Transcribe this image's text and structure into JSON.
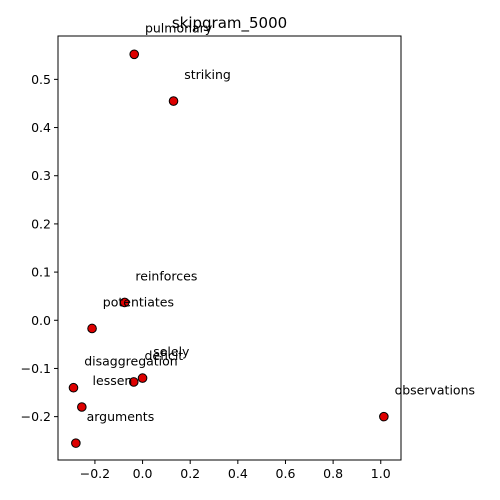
{
  "chart_data": {
    "type": "scatter",
    "title": "skipgram_5000",
    "xlabel": "",
    "ylabel": "",
    "xlim": [
      -0.355,
      1.085
    ],
    "ylim": [
      -0.29,
      0.59
    ],
    "xticks": [
      -0.2,
      0.0,
      0.2,
      0.4,
      0.6,
      0.8,
      1.0
    ],
    "xtick_labels": [
      "−0.2",
      "0.0",
      "0.2",
      "0.4",
      "0.6",
      "0.8",
      "1.0"
    ],
    "yticks": [
      -0.2,
      -0.1,
      0.0,
      0.1,
      0.2,
      0.3,
      0.4,
      0.5
    ],
    "ytick_labels": [
      "−0.2",
      "−0.1",
      "0.0",
      "0.1",
      "0.2",
      "0.3",
      "0.4",
      "0.5"
    ],
    "grid": false,
    "marker_color": "#dd0000",
    "marker_edge_color": "#000000",
    "points": [
      {
        "label": "pulmonary",
        "x": -0.035,
        "y": 0.552
      },
      {
        "label": "striking",
        "x": 0.13,
        "y": 0.455
      },
      {
        "label": "reinforces",
        "x": -0.075,
        "y": 0.037
      },
      {
        "label": "potentiates",
        "x": -0.212,
        "y": -0.017
      },
      {
        "label": "solely",
        "x": 0.0,
        "y": -0.12
      },
      {
        "label": "deficit",
        "x": -0.037,
        "y": -0.128
      },
      {
        "label": "disaggregation",
        "x": -0.29,
        "y": -0.14
      },
      {
        "label": "lessen",
        "x": -0.255,
        "y": -0.18
      },
      {
        "label": "arguments",
        "x": -0.28,
        "y": -0.255
      },
      {
        "label": "observations",
        "x": 1.013,
        "y": -0.2
      }
    ],
    "label_offset_data": {
      "dx": 0.045,
      "dy": 0.055
    }
  }
}
